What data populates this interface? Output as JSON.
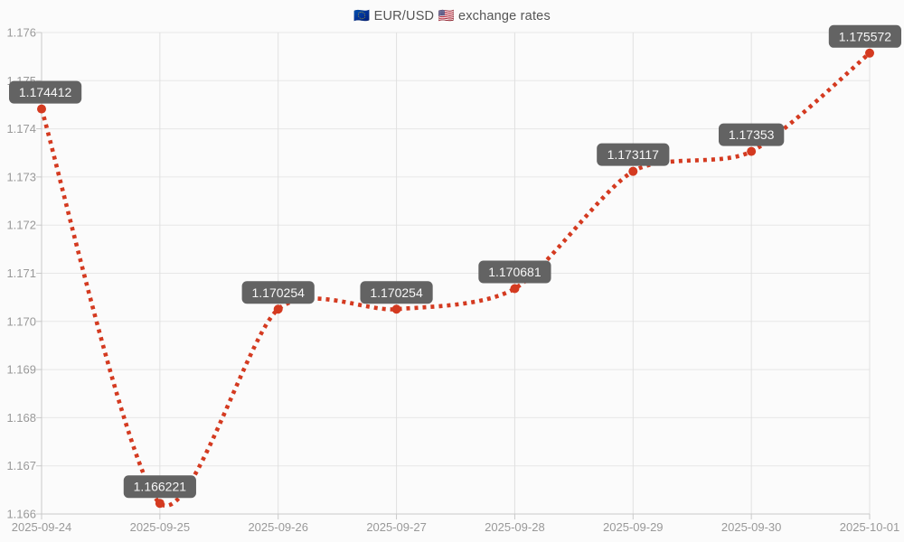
{
  "chart_data": {
    "type": "line",
    "title": "🇪🇺 EUR/USD 🇺🇸 exchange rates",
    "categories": [
      "2025-09-24",
      "2025-09-25",
      "2025-09-26",
      "2025-09-27",
      "2025-09-28",
      "2025-09-29",
      "2025-09-30",
      "2025-10-01"
    ],
    "series": [
      {
        "name": "EUR/USD",
        "values": [
          1.174412,
          1.166221,
          1.170254,
          1.170254,
          1.170681,
          1.173117,
          1.17353,
          1.175572
        ]
      }
    ],
    "point_labels": [
      "1.174412",
      "1.166221",
      "1.170254",
      "1.170254",
      "1.170681",
      "1.173117",
      "1.17353",
      "1.175572"
    ],
    "y_ticks": [
      "1.176",
      "1.175",
      "1.174",
      "1.173",
      "1.172",
      "1.171",
      "1.170",
      "1.169",
      "1.168",
      "1.167",
      "1.166"
    ],
    "ylim": [
      1.166,
      1.176
    ],
    "xlabel": "",
    "ylabel": "",
    "grid": "on",
    "legend": "none",
    "line_style": "dotted",
    "marker": "circle",
    "colors": {
      "line": "#d43a20",
      "marker": "#d43a20",
      "label_bg": "#636363",
      "label_text": "#f7f7f7",
      "title_text": "#555555",
      "axis_text": "#999999",
      "grid_h": "#e7e7e7",
      "grid_v": "#e0e0e0",
      "axis_line": "#c9c9c9",
      "background": "#fbfbfb"
    }
  }
}
